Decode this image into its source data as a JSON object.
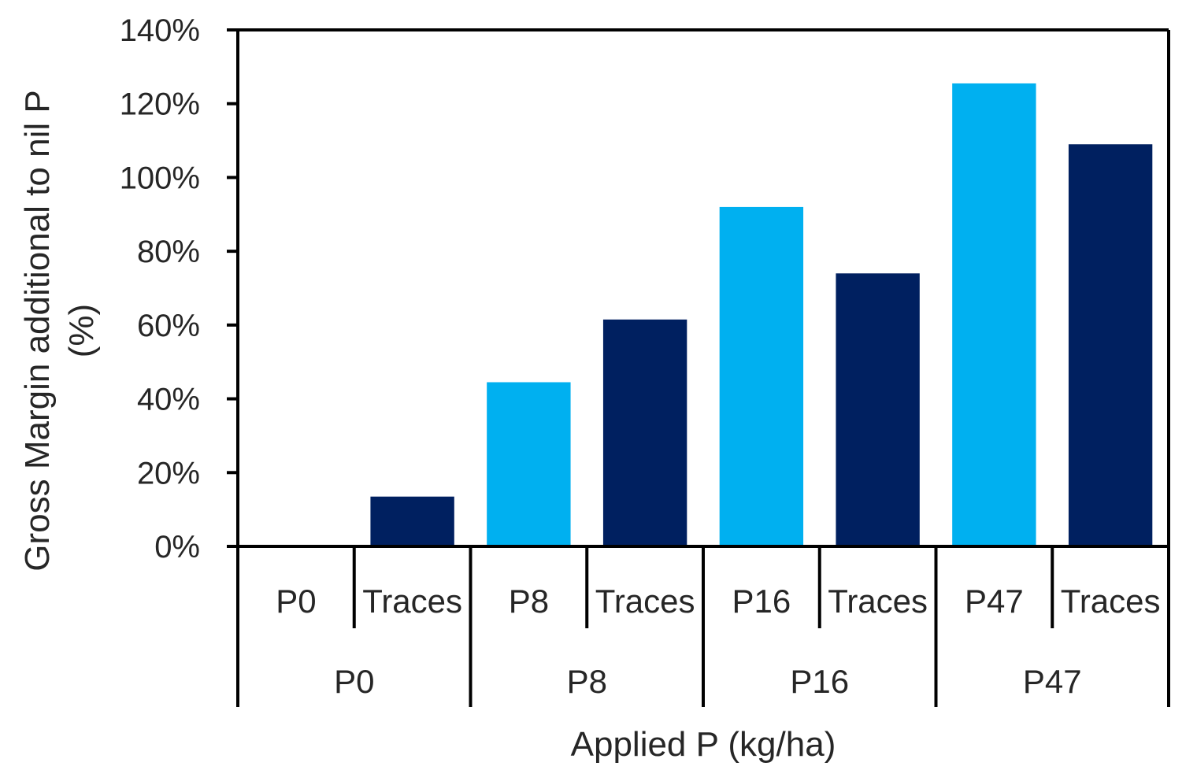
{
  "chart_data": {
    "type": "bar",
    "title": "",
    "xlabel": "Applied P (kg/ha)",
    "ylabel": [
      "Gross Margin additional to nil P",
      "(%)"
    ],
    "ylim": [
      0,
      140
    ],
    "yticks": [
      0,
      20,
      40,
      60,
      80,
      100,
      120,
      140
    ],
    "ytick_labels": [
      "0%",
      "20%",
      "40%",
      "60%",
      "80%",
      "100%",
      "120%",
      "140%"
    ],
    "grid": false,
    "legend": "none",
    "groups": [
      {
        "label": "P0",
        "bars": [
          {
            "label": "P0",
            "value": 0,
            "color": "#00B0F0"
          },
          {
            "label": "Traces",
            "value": 13.5,
            "color": "#002060"
          }
        ]
      },
      {
        "label": "P8",
        "bars": [
          {
            "label": "P8",
            "value": 44.5,
            "color": "#00B0F0"
          },
          {
            "label": "Traces",
            "value": 61.5,
            "color": "#002060"
          }
        ]
      },
      {
        "label": "P16",
        "bars": [
          {
            "label": "P16",
            "value": 92,
            "color": "#00B0F0"
          },
          {
            "label": "Traces",
            "value": 74,
            "color": "#002060"
          }
        ]
      },
      {
        "label": "P47",
        "bars": [
          {
            "label": "P47",
            "value": 125.5,
            "color": "#00B0F0"
          },
          {
            "label": "Traces",
            "value": 109,
            "color": "#002060"
          }
        ]
      }
    ]
  }
}
